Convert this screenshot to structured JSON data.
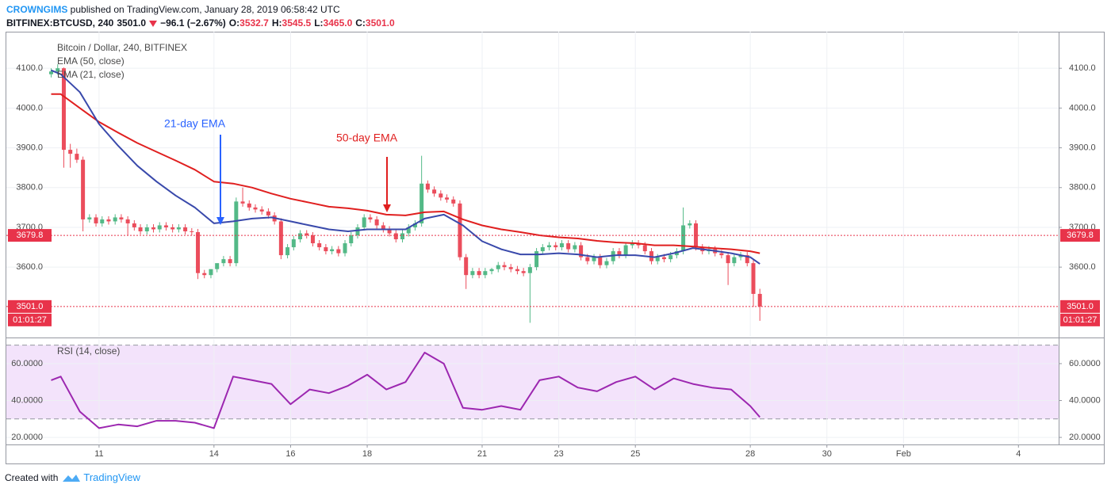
{
  "header": {
    "author": "CROWNGIMS",
    "published": "published on TradingView.com, January 28, 2019 06:58:42 UTC",
    "symbol": "BITFINEX:BTCUSD, 240",
    "price": "3501.0",
    "change": "−96.1 (−2.67%)",
    "ohlc": [
      {
        "label": "O:",
        "value": "3532.7"
      },
      {
        "label": "H:",
        "value": "3545.5"
      },
      {
        "label": "L:",
        "value": "3465.0"
      },
      {
        "label": "C:",
        "value": "3501.0"
      }
    ]
  },
  "chart_data": [
    {
      "type": "candlestick",
      "title": "Bitcoin / Dollar, 240, BITFINEX",
      "up_color": "#53b987",
      "down_color": "#eb4d5c",
      "grid": true,
      "x": [
        9.75,
        9.92,
        10.08,
        10.25,
        10.42,
        10.58,
        10.75,
        10.92,
        11.08,
        11.25,
        11.42,
        11.58,
        11.75,
        11.92,
        12.08,
        12.25,
        12.42,
        12.58,
        12.75,
        12.92,
        13.08,
        13.25,
        13.42,
        13.58,
        13.75,
        13.92,
        14.08,
        14.25,
        14.42,
        14.58,
        14.75,
        14.92,
        15.08,
        15.25,
        15.42,
        15.58,
        15.75,
        15.92,
        16.08,
        16.25,
        16.42,
        16.58,
        16.75,
        16.92,
        17.08,
        17.25,
        17.42,
        17.58,
        17.75,
        17.92,
        18.08,
        18.25,
        18.42,
        18.58,
        18.75,
        18.92,
        19.08,
        19.25,
        19.42,
        19.58,
        19.75,
        19.92,
        20.08,
        20.25,
        20.42,
        20.58,
        20.75,
        20.92,
        21.08,
        21.25,
        21.42,
        21.58,
        21.75,
        21.92,
        22.08,
        22.25,
        22.42,
        22.58,
        22.75,
        22.92,
        23.08,
        23.25,
        23.42,
        23.58,
        23.75,
        23.92,
        24.08,
        24.25,
        24.42,
        24.58,
        24.75,
        24.92,
        25.08,
        25.25,
        25.42,
        25.58,
        25.75,
        25.92,
        26.08,
        26.25,
        26.42,
        26.58,
        26.75,
        26.92,
        27.08,
        27.25,
        27.42,
        27.58,
        27.75,
        27.92,
        28.08,
        28.25
      ],
      "open": [
        4085,
        4092,
        4100,
        3895,
        3885,
        3870,
        3720,
        3725,
        3710,
        3720,
        3715,
        3725,
        3720,
        3710,
        3700,
        3690,
        3700,
        3695,
        3705,
        3700,
        3695,
        3700,
        3690,
        3688,
        3585,
        3580,
        3595,
        3610,
        3620,
        3610,
        3765,
        3760,
        3750,
        3745,
        3740,
        3730,
        3715,
        3630,
        3650,
        3670,
        3685,
        3680,
        3660,
        3650,
        3640,
        3645,
        3635,
        3660,
        3680,
        3700,
        3725,
        3720,
        3705,
        3695,
        3685,
        3670,
        3685,
        3700,
        3710,
        3810,
        3795,
        3785,
        3775,
        3770,
        3760,
        3625,
        3580,
        3590,
        3580,
        3590,
        3595,
        3605,
        3600,
        3595,
        3590,
        3585,
        3600,
        3640,
        3650,
        3655,
        3650,
        3660,
        3645,
        3655,
        3625,
        3615,
        3625,
        3605,
        3615,
        3640,
        3630,
        3655,
        3660,
        3655,
        3640,
        3615,
        3625,
        3620,
        3630,
        3640,
        3705,
        3710,
        3650,
        3640,
        3645,
        3635,
        3630,
        3610,
        3625,
        3630,
        3610,
        3532.7
      ],
      "high": [
        4100,
        4110,
        4102,
        3910,
        3898,
        3878,
        3733,
        3733,
        3728,
        3728,
        3733,
        3733,
        3728,
        3718,
        3708,
        3708,
        3708,
        3713,
        3713,
        3708,
        3708,
        3708,
        3698,
        3696,
        3593,
        3588,
        3603,
        3628,
        3628,
        3775,
        3800,
        3768,
        3758,
        3753,
        3748,
        3738,
        3723,
        3658,
        3678,
        3693,
        3693,
        3688,
        3668,
        3658,
        3653,
        3653,
        3668,
        3688,
        3708,
        3733,
        3733,
        3728,
        3713,
        3703,
        3693,
        3693,
        3708,
        3718,
        3880,
        3818,
        3803,
        3793,
        3783,
        3778,
        3768,
        3633,
        3598,
        3598,
        3598,
        3598,
        3613,
        3613,
        3608,
        3603,
        3598,
        3608,
        3648,
        3658,
        3663,
        3663,
        3668,
        3668,
        3663,
        3663,
        3633,
        3633,
        3633,
        3623,
        3648,
        3648,
        3663,
        3668,
        3668,
        3663,
        3648,
        3633,
        3633,
        3638,
        3648,
        3750,
        3718,
        3718,
        3658,
        3653,
        3653,
        3643,
        3638,
        3633,
        3638,
        3638,
        3618,
        3545.5
      ],
      "low": [
        4077,
        4084,
        3850,
        3850,
        3862,
        3690,
        3712,
        3702,
        3702,
        3707,
        3707,
        3712,
        3680,
        3692,
        3682,
        3682,
        3687,
        3687,
        3692,
        3687,
        3687,
        3682,
        3680,
        3570,
        3572,
        3572,
        3587,
        3602,
        3602,
        3602,
        3752,
        3742,
        3737,
        3732,
        3722,
        3707,
        3620,
        3622,
        3642,
        3662,
        3672,
        3652,
        3642,
        3632,
        3632,
        3627,
        3627,
        3652,
        3672,
        3692,
        3712,
        3697,
        3687,
        3677,
        3662,
        3662,
        3677,
        3692,
        3702,
        3787,
        3777,
        3767,
        3762,
        3752,
        3617,
        3545,
        3572,
        3572,
        3572,
        3582,
        3587,
        3592,
        3587,
        3582,
        3577,
        3460,
        3592,
        3632,
        3642,
        3642,
        3642,
        3637,
        3637,
        3617,
        3607,
        3607,
        3597,
        3597,
        3607,
        3622,
        3622,
        3647,
        3647,
        3632,
        3607,
        3607,
        3612,
        3612,
        3622,
        3632,
        3697,
        3642,
        3632,
        3632,
        3627,
        3622,
        3555,
        3602,
        3617,
        3602,
        3500,
        3465
      ],
      "close": [
        4092,
        4100,
        3895,
        3885,
        3870,
        3720,
        3725,
        3710,
        3720,
        3715,
        3725,
        3720,
        3710,
        3700,
        3690,
        3700,
        3695,
        3705,
        3700,
        3695,
        3700,
        3690,
        3688,
        3585,
        3580,
        3595,
        3610,
        3620,
        3610,
        3765,
        3760,
        3750,
        3745,
        3740,
        3730,
        3715,
        3630,
        3650,
        3670,
        3685,
        3680,
        3660,
        3650,
        3640,
        3645,
        3635,
        3660,
        3680,
        3700,
        3725,
        3720,
        3705,
        3695,
        3685,
        3670,
        3685,
        3700,
        3710,
        3810,
        3795,
        3785,
        3775,
        3770,
        3760,
        3625,
        3580,
        3590,
        3580,
        3590,
        3595,
        3605,
        3600,
        3595,
        3590,
        3585,
        3600,
        3640,
        3650,
        3655,
        3650,
        3660,
        3645,
        3655,
        3625,
        3615,
        3625,
        3605,
        3615,
        3640,
        3630,
        3655,
        3660,
        3655,
        3640,
        3615,
        3625,
        3620,
        3630,
        3640,
        3705,
        3710,
        3650,
        3640,
        3645,
        3635,
        3630,
        3610,
        3625,
        3630,
        3610,
        3532.7,
        3501
      ],
      "series": [
        {
          "name": "EMA (50, close)",
          "color": "#e01f1f",
          "x": [
            9.75,
            10,
            10.5,
            11,
            11.5,
            12,
            12.5,
            13,
            13.5,
            14,
            14.5,
            15,
            15.5,
            16,
            16.5,
            17,
            17.5,
            18,
            18.5,
            19,
            19.5,
            20,
            20.5,
            21,
            21.5,
            22,
            22.5,
            23,
            23.5,
            24,
            24.5,
            25,
            25.5,
            26,
            26.5,
            27,
            27.5,
            28,
            28.25
          ],
          "values": [
            4035,
            4035,
            4000,
            3965,
            3938,
            3912,
            3890,
            3868,
            3845,
            3815,
            3810,
            3800,
            3785,
            3772,
            3762,
            3752,
            3748,
            3742,
            3732,
            3730,
            3738,
            3740,
            3720,
            3705,
            3695,
            3688,
            3680,
            3675,
            3672,
            3666,
            3662,
            3660,
            3655,
            3655,
            3652,
            3648,
            3645,
            3640,
            3635
          ]
        },
        {
          "name": "EMA (21, close)",
          "color": "#3949ab",
          "x": [
            9.75,
            10,
            10.5,
            11,
            11.5,
            12,
            12.5,
            13,
            13.5,
            14,
            14.5,
            15,
            15.5,
            16,
            16.5,
            17,
            17.5,
            18,
            18.5,
            19,
            19.5,
            20,
            20.5,
            21,
            21.5,
            22,
            22.5,
            23,
            23.5,
            24,
            24.5,
            25,
            25.5,
            26,
            26.5,
            27,
            27.5,
            28,
            28.25
          ],
          "values": [
            4095,
            4085,
            4040,
            3960,
            3905,
            3855,
            3815,
            3780,
            3750,
            3710,
            3715,
            3722,
            3725,
            3715,
            3705,
            3695,
            3690,
            3695,
            3695,
            3695,
            3722,
            3732,
            3705,
            3665,
            3645,
            3632,
            3632,
            3635,
            3632,
            3625,
            3630,
            3630,
            3625,
            3635,
            3648,
            3642,
            3635,
            3625,
            3608
          ]
        }
      ],
      "annotations": [
        {
          "text": "21-day EMA",
          "color": "#2962ff"
        },
        {
          "text": "50-day EMA",
          "color": "#e01f1f"
        }
      ],
      "price_lines": [
        {
          "value": 3679.8,
          "label": "3679.8",
          "color": "#e8334a"
        },
        {
          "value": 3501.0,
          "label": "3501.0",
          "color": "#e8334a",
          "countdown": "01:01:27"
        }
      ],
      "xlim": [
        8.58,
        36.05
      ],
      "ylim": [
        3425,
        4192
      ],
      "xticks": [
        11,
        14,
        16,
        18,
        21,
        23,
        25,
        28,
        30,
        {
          "value": 32,
          "label": "Feb"
        },
        {
          "value": 35,
          "label": "4"
        }
      ],
      "yticks": [
        {
          "value": 3600,
          "label": "3600.0"
        },
        {
          "value": 3700,
          "label": "3700.0"
        },
        {
          "value": 3800,
          "label": "3800.0"
        },
        {
          "value": 3900,
          "label": "3900.0"
        },
        {
          "value": 4000,
          "label": "4000.0"
        },
        {
          "value": 4100,
          "label": "4100.0"
        }
      ]
    },
    {
      "type": "line",
      "title": "RSI (14, close)",
      "color": "#9c27b0",
      "band": [
        30,
        70
      ],
      "band_color": "#f3e3fb",
      "grid": true,
      "x": [
        9.75,
        10,
        10.5,
        11,
        11.5,
        12,
        12.5,
        13,
        13.5,
        14,
        14.5,
        15,
        15.5,
        16,
        16.5,
        17,
        17.5,
        18,
        18.5,
        19,
        19.5,
        20,
        20.5,
        21,
        21.5,
        22,
        22.5,
        23,
        23.5,
        24,
        24.5,
        25,
        25.5,
        26,
        26.5,
        27,
        27.5,
        28,
        28.25
      ],
      "values": [
        51,
        53,
        34,
        25,
        27,
        26,
        29,
        29,
        28,
        25,
        53,
        51,
        49,
        38,
        46,
        44,
        48,
        54,
        46,
        50,
        66,
        60,
        36,
        35,
        37,
        35,
        51,
        53,
        47,
        45,
        50,
        53,
        46,
        52,
        49,
        47,
        46,
        37,
        31
      ],
      "xlim": [
        8.58,
        36.05
      ],
      "ylim": [
        16.6,
        73.3
      ],
      "xticks": [
        11,
        14,
        16,
        18,
        21,
        23,
        25,
        28,
        30,
        {
          "value": 32,
          "label": "Feb"
        },
        {
          "value": 35,
          "label": "4"
        }
      ],
      "yticks": [
        {
          "value": 20,
          "label": "20.0000"
        },
        {
          "value": 40,
          "label": "40.0000"
        },
        {
          "value": 60,
          "label": "60.0000"
        }
      ]
    }
  ],
  "footer": {
    "text": "Created with",
    "brand": "TradingView"
  }
}
